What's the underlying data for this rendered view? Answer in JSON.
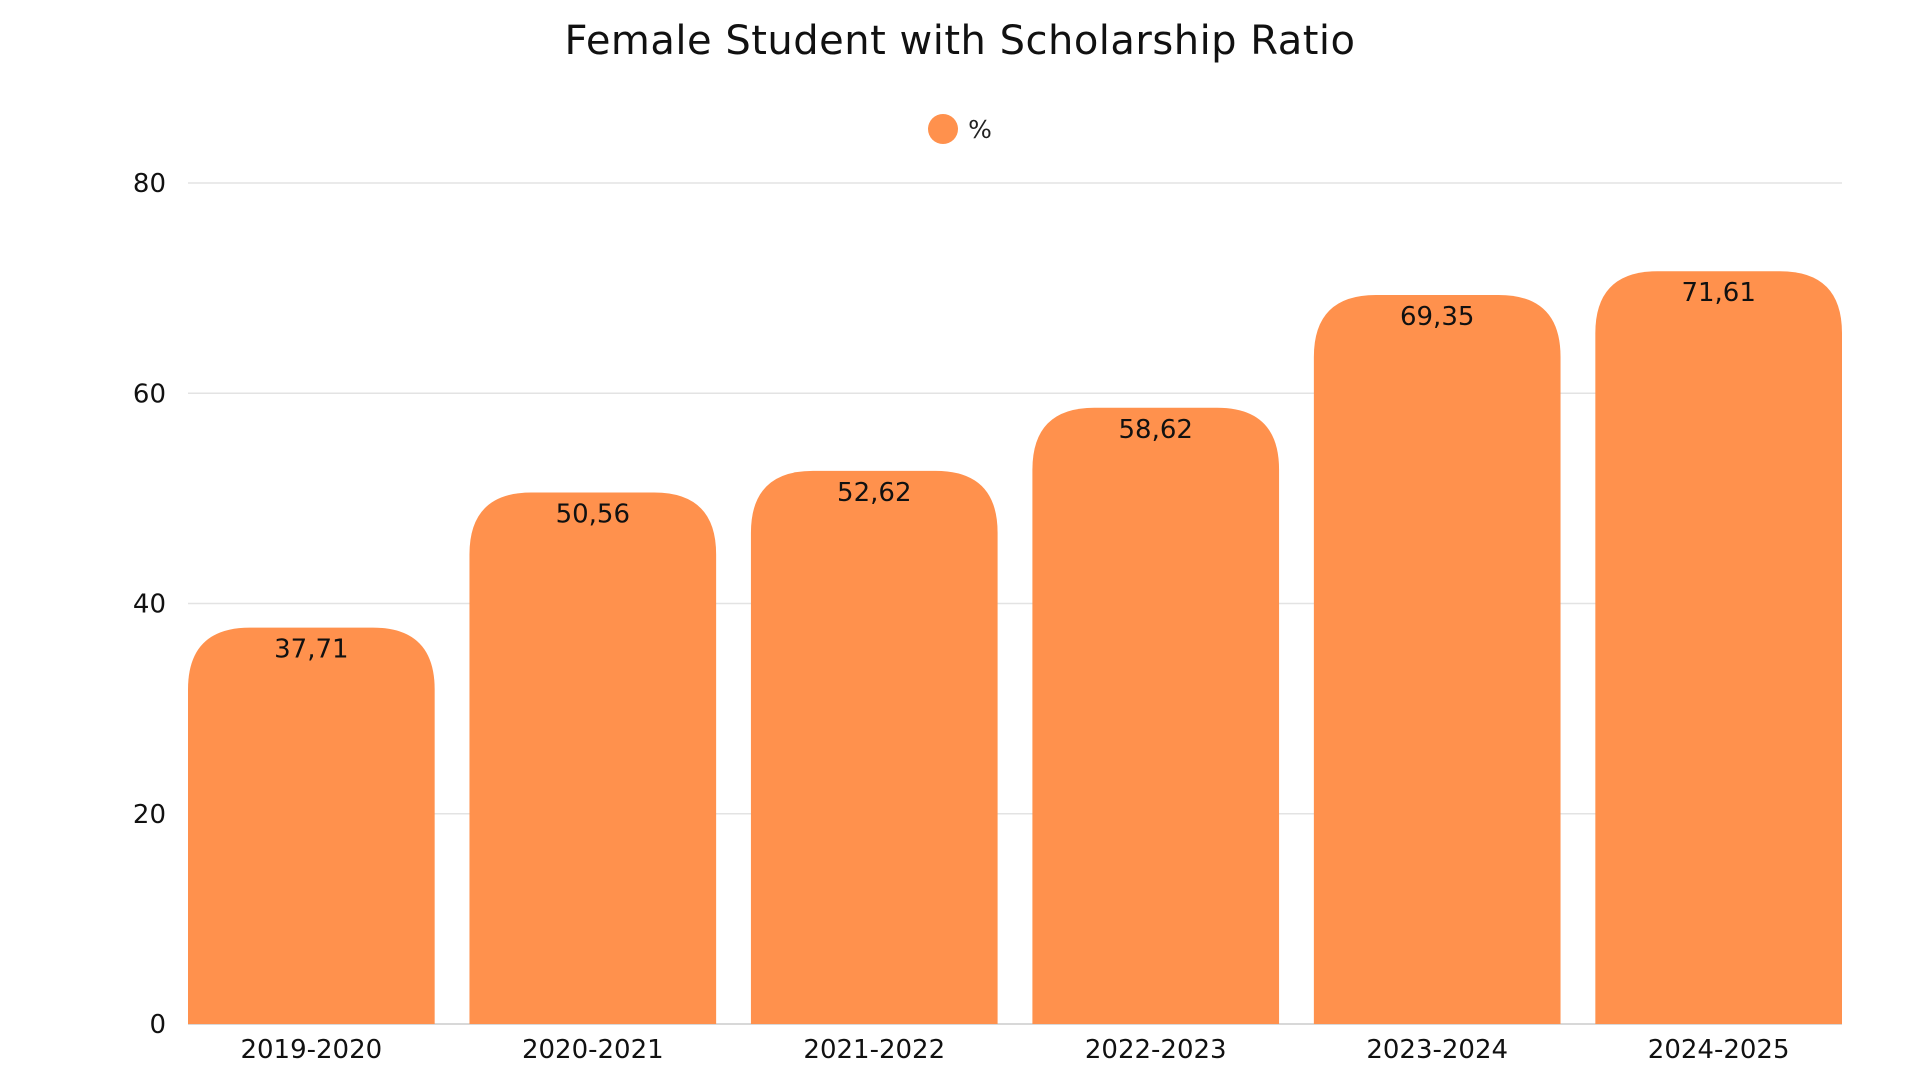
{
  "chart_data": {
    "type": "bar",
    "title": "Female Student with Scholarship Ratio",
    "xlabel": "",
    "ylabel": "",
    "categories": [
      "2019-2020",
      "2020-2021",
      "2021-2022",
      "2022-2023",
      "2023-2024",
      "2024-2025"
    ],
    "series": [
      {
        "name": "%",
        "values": [
          37.71,
          50.56,
          52.62,
          58.62,
          69.35,
          71.61
        ],
        "labels": [
          "37,71",
          "50,56",
          "52,62",
          "58,62",
          "69,35",
          "71,61"
        ]
      }
    ],
    "ylim": [
      0,
      80
    ],
    "yticks": [
      0,
      20,
      40,
      60,
      80
    ],
    "grid": true,
    "legend_position": "top-center",
    "bar_color": "#FF914D",
    "grid_color": "#E3E3E3",
    "text_color": "#111111"
  }
}
